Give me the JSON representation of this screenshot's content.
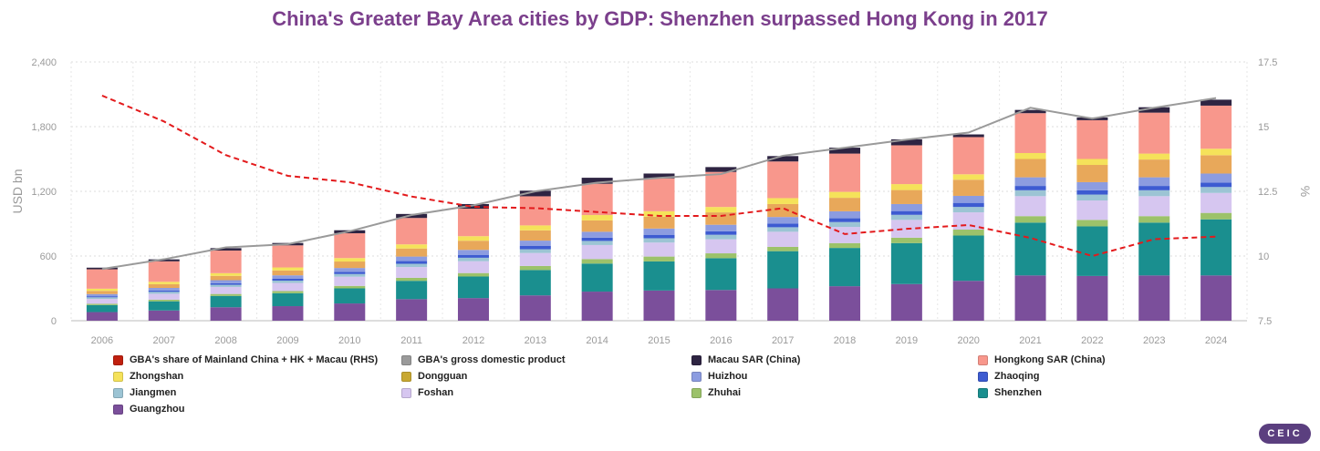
{
  "title": "China's Greater Bay Area cities by GDP: Shenzhen surpassed Hong Kong in 2017",
  "brand": "CEIC",
  "chart_data": {
    "type": "bar",
    "title": "China's Greater Bay Area cities by GDP: Shenzhen surpassed Hong Kong in 2017",
    "ylabel": "USD bn",
    "y2label": "%",
    "ylim": [
      0,
      2400
    ],
    "y2lim": [
      7.5,
      17.5
    ],
    "yticks": [
      "0",
      "600",
      "1,200",
      "1,800",
      "2,400"
    ],
    "y2ticks": [
      "7.5",
      "10",
      "12.5",
      "15",
      "17.5"
    ],
    "grid": true,
    "legend_position": "bottom",
    "categories": [
      "2006",
      "2007",
      "2008",
      "2009",
      "2010",
      "2011",
      "2012",
      "2013",
      "2014",
      "2015",
      "2016",
      "2017",
      "2018",
      "2019",
      "2020",
      "2021",
      "2022",
      "2023",
      "2024"
    ],
    "stacked_series": [
      {
        "name": "Guangzhou",
        "color": "#7b4f9b",
        "values": [
          80,
          95,
          125,
          135,
          160,
          200,
          210,
          235,
          270,
          280,
          285,
          300,
          320,
          340,
          370,
          420,
          415,
          420,
          420
        ]
      },
      {
        "name": "Shenzhen",
        "color": "#1a8f8f",
        "values": [
          65,
          85,
          105,
          120,
          140,
          170,
          200,
          235,
          260,
          270,
          295,
          345,
          355,
          380,
          420,
          490,
          460,
          490,
          520
        ]
      },
      {
        "name": "Zhuhai",
        "color": "#9cc26a",
        "values": [
          12,
          15,
          18,
          20,
          23,
          28,
          32,
          38,
          42,
          45,
          45,
          40,
          45,
          50,
          55,
          60,
          60,
          60,
          60
        ]
      },
      {
        "name": "Foshan",
        "color": "#d6c6f0",
        "values": [
          45,
          55,
          65,
          75,
          85,
          100,
          110,
          120,
          130,
          130,
          130,
          140,
          150,
          165,
          160,
          185,
          180,
          185,
          185
        ]
      },
      {
        "name": "Jiangmen",
        "color": "#9cc4d4",
        "values": [
          15,
          18,
          20,
          22,
          25,
          30,
          32,
          35,
          38,
          40,
          42,
          42,
          45,
          47,
          50,
          55,
          55,
          55,
          55
        ]
      },
      {
        "name": "Zhaoqing",
        "color": "#3d5bd1",
        "values": [
          10,
          12,
          15,
          17,
          20,
          25,
          27,
          30,
          30,
          32,
          33,
          35,
          35,
          35,
          38,
          40,
          40,
          40,
          40
        ]
      },
      {
        "name": "Huizhou",
        "color": "#8c9ce0",
        "values": [
          20,
          24,
          28,
          32,
          36,
          42,
          46,
          50,
          55,
          58,
          60,
          60,
          65,
          65,
          65,
          80,
          75,
          80,
          85
        ]
      },
      {
        "name": "Dongguan",
        "color": "#e8a85a",
        "values": [
          30,
          35,
          40,
          45,
          60,
          75,
          85,
          95,
          105,
          110,
          115,
          120,
          125,
          130,
          150,
          170,
          160,
          165,
          170
        ]
      },
      {
        "name": "Zhongshan",
        "color": "#f5e25a",
        "values": [
          20,
          22,
          25,
          28,
          32,
          38,
          42,
          46,
          50,
          50,
          50,
          55,
          55,
          55,
          50,
          55,
          55,
          55,
          60
        ]
      },
      {
        "name": "Hongkong SAR (China)",
        "color": "#f8978c",
        "values": [
          180,
          190,
          210,
          205,
          230,
          245,
          255,
          270,
          290,
          305,
          325,
          340,
          355,
          360,
          345,
          370,
          360,
          380,
          400
        ]
      },
      {
        "name": "Macau SAR (China)",
        "color": "#2e2442",
        "values": [
          15,
          18,
          22,
          22,
          28,
          37,
          43,
          52,
          56,
          45,
          45,
          50,
          55,
          55,
          25,
          30,
          25,
          50,
          55
        ]
      }
    ],
    "line_series": [
      {
        "name": "GBA's gross domestic product",
        "color": "#9a9a9a",
        "axis": "left",
        "values": [
          480,
          570,
          680,
          710,
          830,
          980,
          1070,
          1200,
          1280,
          1325,
          1360,
          1530,
          1605,
          1680,
          1745,
          1975,
          1875,
          1975,
          2065
        ]
      },
      {
        "name": "GBA's share of Mainland China + HK + Macau (RHS)",
        "color": "#e31a1c",
        "axis": "right",
        "values": [
          16.2,
          15.2,
          13.9,
          13.1,
          12.85,
          12.3,
          11.9,
          11.85,
          11.7,
          11.55,
          11.55,
          11.85,
          10.85,
          11.05,
          11.2,
          10.7,
          10.0,
          10.65,
          10.75
        ]
      }
    ]
  },
  "legend": [
    {
      "label": "GBA's share of Mainland China + HK + Macau (RHS)",
      "color": "#c0200f"
    },
    {
      "label": "GBA's gross domestic product",
      "color": "#9a9a9a"
    },
    {
      "label": "Macau SAR (China)",
      "color": "#2e2442"
    },
    {
      "label": "Hongkong SAR (China)",
      "color": "#f8978c"
    },
    {
      "label": "Zhongshan",
      "color": "#f5e25a"
    },
    {
      "label": "Dongguan",
      "color": "#c8a832"
    },
    {
      "label": "Huizhou",
      "color": "#8c9ce0"
    },
    {
      "label": "Zhaoqing",
      "color": "#3d5bd1"
    },
    {
      "label": "Jiangmen",
      "color": "#9cc4d4"
    },
    {
      "label": "Foshan",
      "color": "#d6c6f0"
    },
    {
      "label": "Zhuhai",
      "color": "#9cc26a"
    },
    {
      "label": "Shenzhen",
      "color": "#1a8f8f"
    },
    {
      "label": "Guangzhou",
      "color": "#7b4f9b"
    }
  ]
}
